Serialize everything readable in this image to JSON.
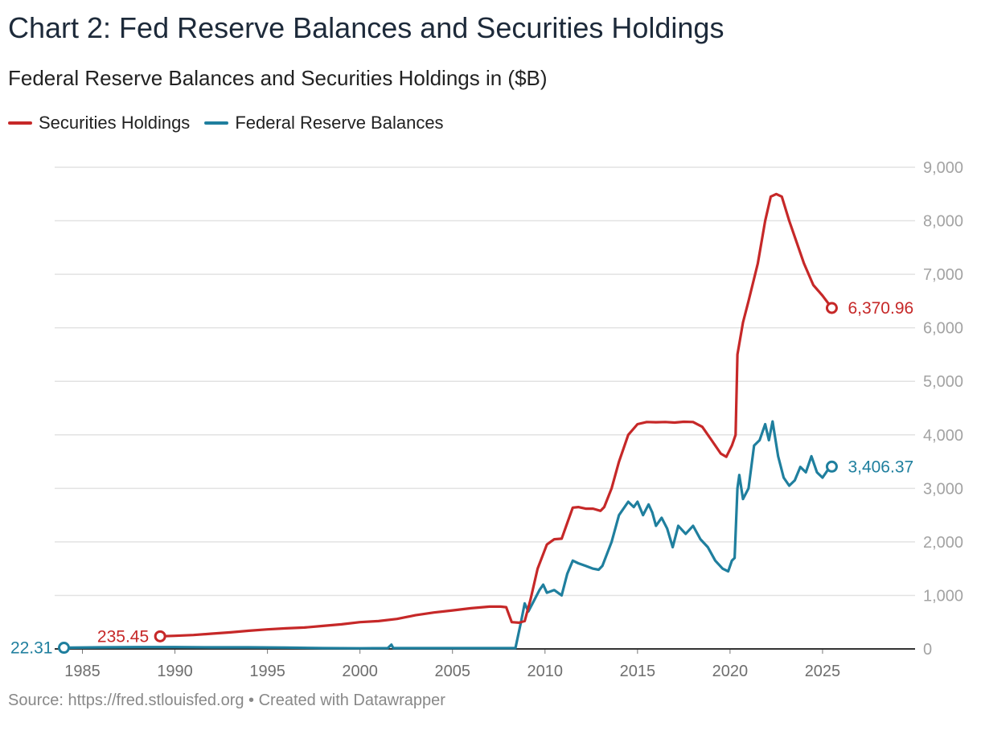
{
  "title": "Chart 2: Fed Reserve Balances and Securities Holdings",
  "subtitle": "Federal Reserve Balances and Securities Holdings in ($B)",
  "source": "Source: https://fred.stlouisfed.org • Created with Datawrapper",
  "colors": {
    "securities": "#c62828",
    "reserves": "#1f7f9e",
    "grid": "#e2e2e2",
    "axis": "#333333"
  },
  "chart_data": {
    "type": "line",
    "xlim": [
      1983.5,
      2030
    ],
    "ylim": [
      0,
      9000
    ],
    "yticks": [
      {
        "value": 0,
        "label": "0"
      },
      {
        "value": 1000,
        "label": "1,000"
      },
      {
        "value": 2000,
        "label": "2,000"
      },
      {
        "value": 3000,
        "label": "3,000"
      },
      {
        "value": 4000,
        "label": "4,000"
      },
      {
        "value": 5000,
        "label": "5,000"
      },
      {
        "value": 6000,
        "label": "6,000"
      },
      {
        "value": 7000,
        "label": "7,000"
      },
      {
        "value": 8000,
        "label": "8,000"
      },
      {
        "value": 9000,
        "label": "9,000"
      }
    ],
    "xticks": [
      {
        "value": 1985,
        "label": "1985"
      },
      {
        "value": 1990,
        "label": "1990"
      },
      {
        "value": 1995,
        "label": "1995"
      },
      {
        "value": 2000,
        "label": "2000"
      },
      {
        "value": 2005,
        "label": "2005"
      },
      {
        "value": 2010,
        "label": "2010"
      },
      {
        "value": 2015,
        "label": "2015"
      },
      {
        "value": 2020,
        "label": "2020"
      },
      {
        "value": 2025,
        "label": "2025"
      }
    ],
    "series": [
      {
        "name": "Securities Holdings",
        "key": "securities",
        "start_label": "235.45",
        "end_label": "6,370.96",
        "points": [
          [
            1989.2,
            235.45
          ],
          [
            1990,
            245
          ],
          [
            1991,
            260
          ],
          [
            1992,
            285
          ],
          [
            1993,
            310
          ],
          [
            1994,
            340
          ],
          [
            1995,
            365
          ],
          [
            1996,
            385
          ],
          [
            1997,
            400
          ],
          [
            1998,
            430
          ],
          [
            1999,
            460
          ],
          [
            2000,
            500
          ],
          [
            2001,
            520
          ],
          [
            2002,
            560
          ],
          [
            2003,
            630
          ],
          [
            2004,
            680
          ],
          [
            2005,
            720
          ],
          [
            2006,
            760
          ],
          [
            2007,
            790
          ],
          [
            2007.6,
            790
          ],
          [
            2007.9,
            780
          ],
          [
            2008.2,
            500
          ],
          [
            2008.6,
            490
          ],
          [
            2008.9,
            520
          ],
          [
            2009.2,
            900
          ],
          [
            2009.6,
            1500
          ],
          [
            2010.1,
            1950
          ],
          [
            2010.5,
            2050
          ],
          [
            2010.9,
            2060
          ],
          [
            2011.2,
            2350
          ],
          [
            2011.5,
            2640
          ],
          [
            2011.8,
            2650
          ],
          [
            2012.2,
            2620
          ],
          [
            2012.6,
            2620
          ],
          [
            2013,
            2580
          ],
          [
            2013.2,
            2650
          ],
          [
            2013.6,
            3000
          ],
          [
            2014,
            3500
          ],
          [
            2014.5,
            4000
          ],
          [
            2015,
            4200
          ],
          [
            2015.5,
            4240
          ],
          [
            2016,
            4235
          ],
          [
            2016.5,
            4240
          ],
          [
            2017,
            4230
          ],
          [
            2017.5,
            4245
          ],
          [
            2018,
            4240
          ],
          [
            2018.5,
            4150
          ],
          [
            2019,
            3900
          ],
          [
            2019.5,
            3650
          ],
          [
            2019.8,
            3590
          ],
          [
            2020.1,
            3800
          ],
          [
            2020.3,
            4000
          ],
          [
            2020.4,
            5500
          ],
          [
            2020.7,
            6100
          ],
          [
            2021,
            6500
          ],
          [
            2021.5,
            7200
          ],
          [
            2021.9,
            8000
          ],
          [
            2022.2,
            8450
          ],
          [
            2022.5,
            8500
          ],
          [
            2022.8,
            8450
          ],
          [
            2023.2,
            8000
          ],
          [
            2023.6,
            7600
          ],
          [
            2024,
            7200
          ],
          [
            2024.5,
            6800
          ],
          [
            2025,
            6600
          ],
          [
            2025.5,
            6370.96
          ]
        ]
      },
      {
        "name": "Federal Reserve Balances",
        "key": "reserves",
        "start_label": "22.31",
        "end_label": "3,406.37",
        "points": [
          [
            1984,
            22.31
          ],
          [
            1986,
            30
          ],
          [
            1988,
            35
          ],
          [
            1990,
            35
          ],
          [
            1992,
            30
          ],
          [
            1994,
            30
          ],
          [
            1996,
            25
          ],
          [
            1998,
            15
          ],
          [
            2000,
            12
          ],
          [
            2001.5,
            15
          ],
          [
            2001.7,
            80
          ],
          [
            2001.8,
            15
          ],
          [
            2004,
            15
          ],
          [
            2006,
            15
          ],
          [
            2008.4,
            15
          ],
          [
            2008.7,
            500
          ],
          [
            2008.9,
            850
          ],
          [
            2009.1,
            700
          ],
          [
            2009.4,
            900
          ],
          [
            2009.7,
            1100
          ],
          [
            2009.9,
            1200
          ],
          [
            2010.1,
            1050
          ],
          [
            2010.5,
            1100
          ],
          [
            2010.9,
            1000
          ],
          [
            2011.2,
            1400
          ],
          [
            2011.5,
            1650
          ],
          [
            2011.8,
            1600
          ],
          [
            2012.2,
            1550
          ],
          [
            2012.6,
            1500
          ],
          [
            2012.9,
            1480
          ],
          [
            2013.1,
            1550
          ],
          [
            2013.6,
            2000
          ],
          [
            2014,
            2500
          ],
          [
            2014.5,
            2750
          ],
          [
            2014.8,
            2650
          ],
          [
            2015,
            2750
          ],
          [
            2015.3,
            2500
          ],
          [
            2015.6,
            2700
          ],
          [
            2015.8,
            2550
          ],
          [
            2016,
            2300
          ],
          [
            2016.3,
            2450
          ],
          [
            2016.6,
            2250
          ],
          [
            2016.9,
            1900
          ],
          [
            2017.2,
            2300
          ],
          [
            2017.6,
            2150
          ],
          [
            2018,
            2300
          ],
          [
            2018.4,
            2050
          ],
          [
            2018.8,
            1900
          ],
          [
            2019.2,
            1650
          ],
          [
            2019.6,
            1500
          ],
          [
            2019.9,
            1450
          ],
          [
            2020.1,
            1650
          ],
          [
            2020.25,
            1700
          ],
          [
            2020.4,
            3000
          ],
          [
            2020.5,
            3250
          ],
          [
            2020.7,
            2800
          ],
          [
            2021,
            3000
          ],
          [
            2021.3,
            3800
          ],
          [
            2021.6,
            3900
          ],
          [
            2021.9,
            4200
          ],
          [
            2022.1,
            3900
          ],
          [
            2022.3,
            4250
          ],
          [
            2022.6,
            3600
          ],
          [
            2022.9,
            3200
          ],
          [
            2023.2,
            3050
          ],
          [
            2023.5,
            3150
          ],
          [
            2023.8,
            3400
          ],
          [
            2024.1,
            3300
          ],
          [
            2024.4,
            3600
          ],
          [
            2024.7,
            3300
          ],
          [
            2025,
            3200
          ],
          [
            2025.3,
            3350
          ],
          [
            2025.5,
            3406.37
          ]
        ]
      }
    ]
  }
}
